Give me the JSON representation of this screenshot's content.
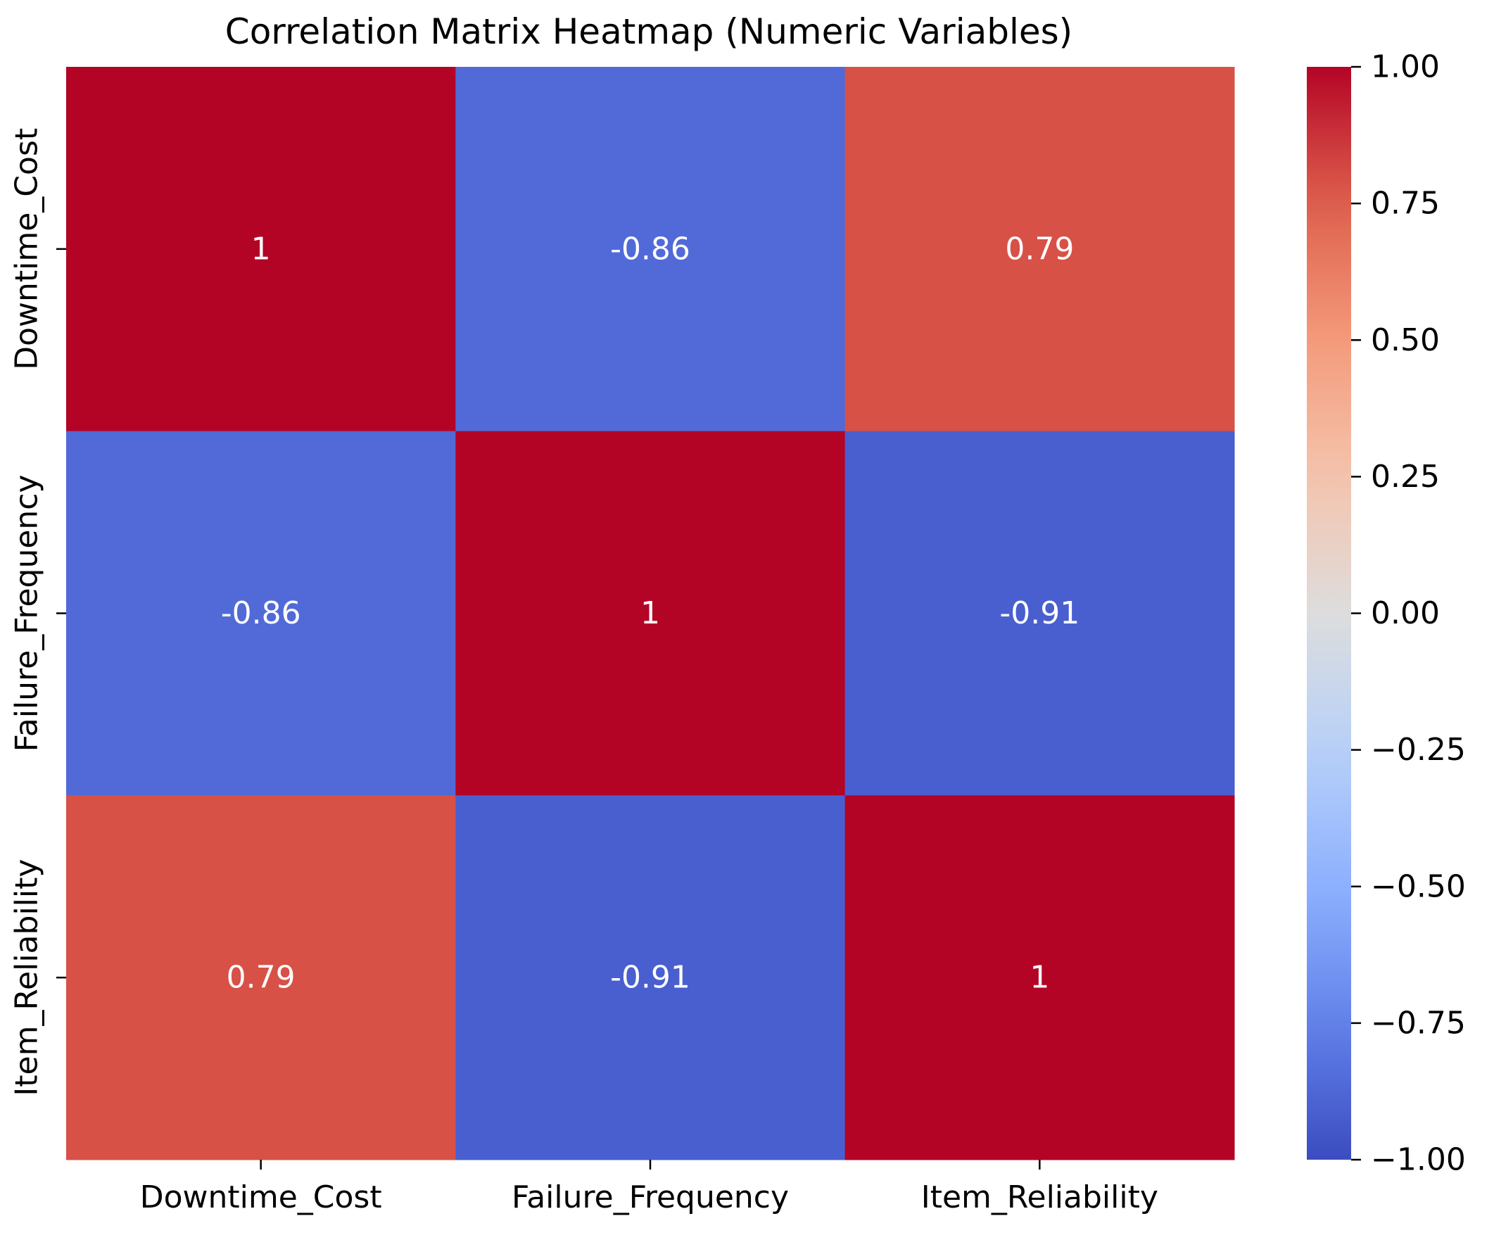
{
  "chart_data": {
    "type": "heatmap",
    "title": "Correlation Matrix Heatmap (Numeric Variables)",
    "xlabel": "",
    "ylabel": "",
    "x_categories": [
      "Downtime_Cost",
      "Failure_Frequency",
      "Item_Reliability"
    ],
    "y_categories": [
      "Downtime_Cost",
      "Failure_Frequency",
      "Item_Reliability"
    ],
    "values": [
      [
        1.0,
        -0.86,
        0.79
      ],
      [
        -0.86,
        1.0,
        -0.91
      ],
      [
        0.79,
        -0.91,
        1.0
      ]
    ],
    "annotations": [
      [
        "1",
        "-0.86",
        "0.79"
      ],
      [
        "-0.86",
        "1",
        "-0.91"
      ],
      [
        "0.79",
        "-0.91",
        "1"
      ]
    ],
    "colormap": "coolwarm",
    "vmin": -1.0,
    "vmax": 1.0,
    "colorbar": {
      "ticks": [
        1.0,
        0.75,
        0.5,
        0.25,
        0.0,
        -0.25,
        -0.5,
        -0.75,
        -1.0
      ],
      "tick_labels": [
        "1.00",
        "0.75",
        "0.50",
        "0.25",
        "0.00",
        "−0.25",
        "−0.50",
        "−0.75",
        "−1.00"
      ]
    },
    "annotation_color": "#ffffff"
  }
}
